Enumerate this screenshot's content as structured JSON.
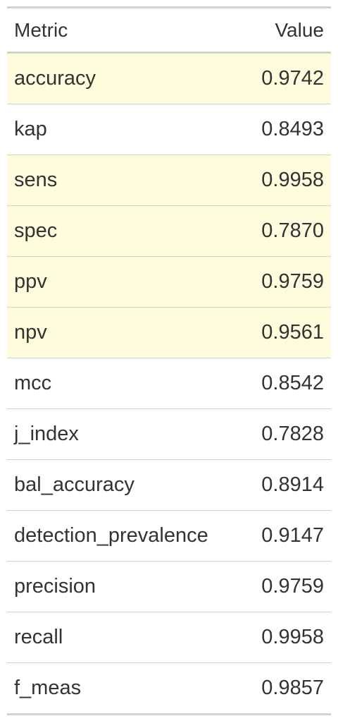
{
  "table": {
    "headers": [
      "Metric",
      "Value"
    ],
    "highlight_color": "#fffcdd",
    "rows": [
      {
        "metric": "accuracy",
        "value": "0.9742",
        "highlighted": true
      },
      {
        "metric": "kap",
        "value": "0.8493",
        "highlighted": false
      },
      {
        "metric": "sens",
        "value": "0.9958",
        "highlighted": true
      },
      {
        "metric": "spec",
        "value": "0.7870",
        "highlighted": true
      },
      {
        "metric": "ppv",
        "value": "0.9759",
        "highlighted": true
      },
      {
        "metric": "npv",
        "value": "0.9561",
        "highlighted": true
      },
      {
        "metric": "mcc",
        "value": "0.8542",
        "highlighted": false
      },
      {
        "metric": "j_index",
        "value": "0.7828",
        "highlighted": false
      },
      {
        "metric": "bal_accuracy",
        "value": "0.8914",
        "highlighted": false
      },
      {
        "metric": "detection_prevalence",
        "value": "0.9147",
        "highlighted": false
      },
      {
        "metric": "precision",
        "value": "0.9759",
        "highlighted": false
      },
      {
        "metric": "recall",
        "value": "0.9958",
        "highlighted": false
      },
      {
        "metric": "f_meas",
        "value": "0.9857",
        "highlighted": false
      }
    ]
  }
}
